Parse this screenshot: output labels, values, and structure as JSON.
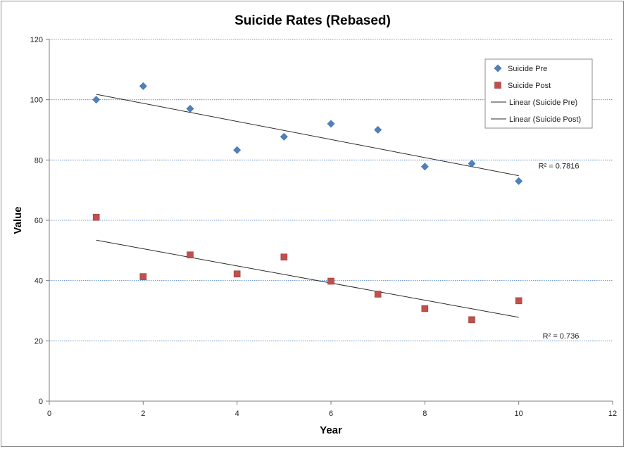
{
  "chart_data": {
    "type": "scatter",
    "title": "Suicide Rates (Rebased)",
    "xlabel": "Year",
    "ylabel": "Value",
    "xlim": [
      0,
      12
    ],
    "ylim": [
      0,
      120
    ],
    "x_ticks": [
      "0",
      "2",
      "4",
      "6",
      "8",
      "10",
      "12"
    ],
    "y_ticks": [
      "0",
      "20",
      "40",
      "60",
      "80",
      "100",
      "120"
    ],
    "grid": "horizontal",
    "legend_position": "top-right",
    "series": [
      {
        "name": "Suicide Pre",
        "marker": "diamond",
        "color": "#4f81bd",
        "x": [
          1,
          2,
          3,
          4,
          5,
          6,
          7,
          8,
          9,
          10
        ],
        "y": [
          100,
          104.5,
          97,
          83.3,
          87.7,
          92,
          90,
          77.8,
          78.8,
          73
        ],
        "trendline": {
          "legend_label": "Linear (Suicide Pre)",
          "type": "linear",
          "r2_label": "R² = 0.7816",
          "y_at_x1": 101.8,
          "y_at_x10": 74.8
        }
      },
      {
        "name": "Suicide Post",
        "marker": "square",
        "color": "#c0504d",
        "x": [
          1,
          2,
          3,
          4,
          5,
          6,
          7,
          8,
          9,
          10
        ],
        "y": [
          61,
          41.3,
          48.5,
          42.2,
          47.8,
          39.8,
          35.5,
          30.7,
          27,
          33.3
        ],
        "trendline": {
          "legend_label": "Linear (Suicide Post)",
          "type": "linear",
          "r2_label": "R² = 0.736",
          "y_at_x1": 53.4,
          "y_at_x10": 27.8
        }
      }
    ]
  }
}
